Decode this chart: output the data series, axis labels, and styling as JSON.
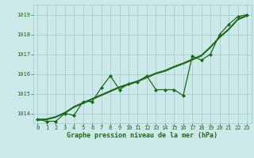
{
  "title": "Graphe pression niveau de la mer (hPa)",
  "background_color": "#cce8e8",
  "grid_color": "#99cccc",
  "line_color": "#1a6b1a",
  "text_color": "#1a6b1a",
  "xlim": [
    -0.5,
    23.5
  ],
  "ylim": [
    1013.5,
    1019.5
  ],
  "yticks": [
    1014,
    1015,
    1016,
    1017,
    1018,
    1019
  ],
  "xticks": [
    0,
    1,
    2,
    3,
    4,
    5,
    6,
    7,
    8,
    9,
    10,
    11,
    12,
    13,
    14,
    15,
    16,
    17,
    18,
    19,
    20,
    21,
    22,
    23
  ],
  "series_jagged": [
    1013.7,
    1013.6,
    1013.6,
    1014.0,
    1013.9,
    1014.6,
    1014.6,
    1015.3,
    1015.9,
    1015.2,
    1015.5,
    1015.6,
    1015.9,
    1015.2,
    1015.2,
    1015.2,
    1014.9,
    1016.9,
    1016.7,
    1017.0,
    1018.0,
    1018.5,
    1018.9,
    1019.0
  ],
  "series_smooth1": [
    1013.7,
    1013.72,
    1013.84,
    1014.05,
    1014.35,
    1014.55,
    1014.75,
    1014.95,
    1015.15,
    1015.35,
    1015.5,
    1015.65,
    1015.85,
    1016.05,
    1016.18,
    1016.38,
    1016.55,
    1016.75,
    1016.95,
    1017.38,
    1017.88,
    1018.28,
    1018.78,
    1018.98
  ],
  "series_smooth2": [
    1013.68,
    1013.7,
    1013.82,
    1014.02,
    1014.32,
    1014.52,
    1014.72,
    1014.92,
    1015.12,
    1015.32,
    1015.47,
    1015.62,
    1015.82,
    1016.02,
    1016.15,
    1016.35,
    1016.52,
    1016.72,
    1016.92,
    1017.35,
    1017.85,
    1018.25,
    1018.75,
    1018.95
  ],
  "series_smooth3": [
    1013.65,
    1013.68,
    1013.8,
    1014.0,
    1014.3,
    1014.5,
    1014.7,
    1014.9,
    1015.1,
    1015.3,
    1015.45,
    1015.6,
    1015.8,
    1016.0,
    1016.13,
    1016.33,
    1016.5,
    1016.7,
    1016.9,
    1017.33,
    1017.83,
    1018.23,
    1018.73,
    1018.93
  ]
}
